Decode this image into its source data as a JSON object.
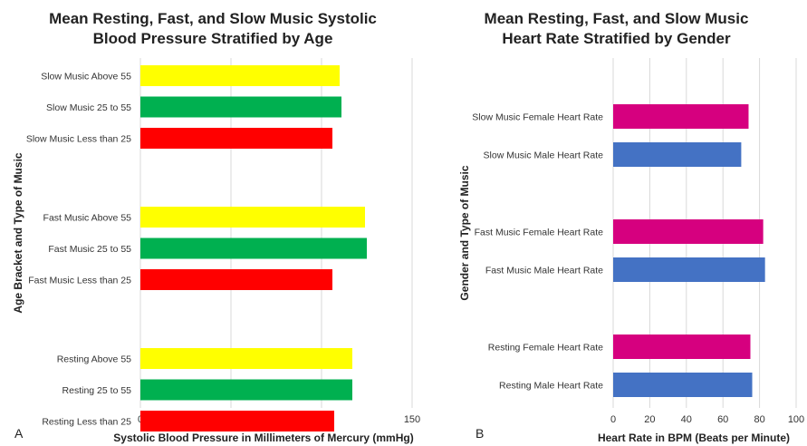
{
  "chart_data": [
    {
      "type": "bar",
      "orientation": "horizontal",
      "panel_label": "A",
      "title_lines": [
        "Mean Resting, Fast, and Slow Music Systolic",
        "Blood Pressure Stratified by Age"
      ],
      "xlabel": "Systolic Blood Pressure in Millimeters of Mercury (mmHg)",
      "ylabel": "Age Bracket and Type of Music",
      "xlim": [
        0,
        150
      ],
      "xticks": [
        0,
        50,
        100,
        150
      ],
      "grid": "vertical",
      "groups": [
        {
          "bars": [
            {
              "label": "Slow Music Above 55",
              "value": 110,
              "color": "#ffff00"
            },
            {
              "label": "Slow Music 25 to 55",
              "value": 111,
              "color": "#00b050"
            },
            {
              "label": "Slow Music Less than 25",
              "value": 106,
              "color": "#ff0000"
            }
          ]
        },
        {
          "bars": [
            {
              "label": "Fast Music Above 55",
              "value": 124,
              "color": "#ffff00"
            },
            {
              "label": "Fast Music 25 to 55",
              "value": 125,
              "color": "#00b050"
            },
            {
              "label": "Fast Music Less than 25",
              "value": 106,
              "color": "#ff0000"
            }
          ]
        },
        {
          "bars": [
            {
              "label": "Resting Above 55",
              "value": 117,
              "color": "#ffff00"
            },
            {
              "label": "Resting 25 to 55",
              "value": 117,
              "color": "#00b050"
            },
            {
              "label": "Resting Less than 25",
              "value": 107,
              "color": "#ff0000"
            }
          ]
        }
      ]
    },
    {
      "type": "bar",
      "orientation": "horizontal",
      "panel_label": "B",
      "title_lines": [
        "Mean Resting, Fast, and Slow Music",
        "Heart Rate Stratified by Gender"
      ],
      "xlabel": "Heart Rate in BPM (Beats per Minute)",
      "ylabel": "Gender and Type of Music",
      "xlim": [
        0,
        100
      ],
      "xticks": [
        0,
        20,
        40,
        60,
        80,
        100
      ],
      "grid": "vertical",
      "groups": [
        {
          "bars": [
            {
              "label": "Slow Music Female Heart Rate",
              "value": 74,
              "color": "#d6007f"
            },
            {
              "label": "Slow Music Male Heart Rate",
              "value": 70,
              "color": "#4472c4"
            }
          ]
        },
        {
          "bars": [
            {
              "label": "Fast Music Female Heart Rate",
              "value": 82,
              "color": "#d6007f"
            },
            {
              "label": "Fast Music Male Heart Rate",
              "value": 83,
              "color": "#4472c4"
            }
          ]
        },
        {
          "bars": [
            {
              "label": "Resting Female Heart Rate",
              "value": 75,
              "color": "#d6007f"
            },
            {
              "label": "Resting Male Heart Rate",
              "value": 76,
              "color": "#4472c4"
            }
          ]
        }
      ]
    }
  ]
}
